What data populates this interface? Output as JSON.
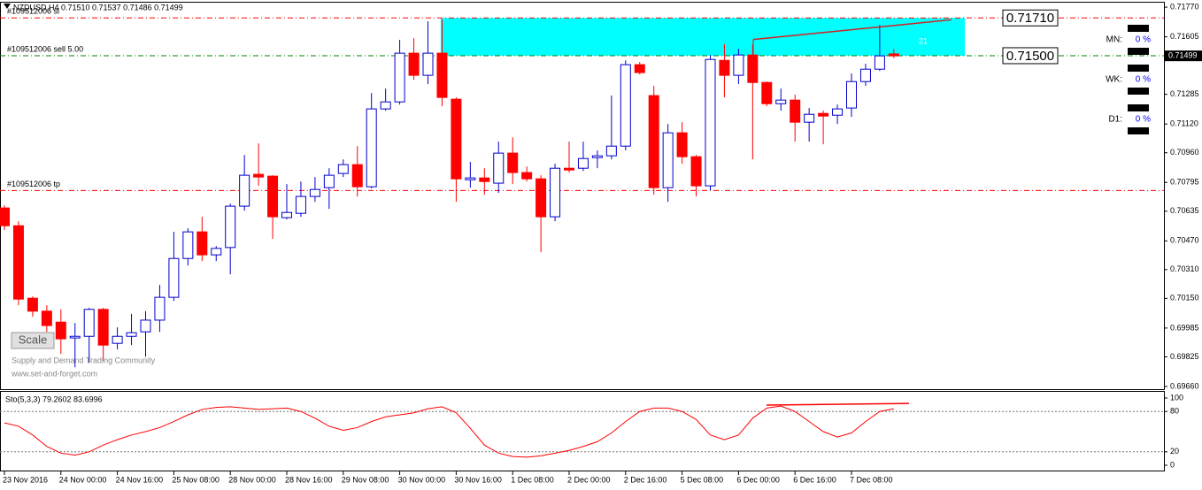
{
  "chart_data": [
    {
      "type": "candlestick",
      "header": "NZDUSD,H4  0.71510 0.71537 0.71486 0.71499",
      "categories": [
        "23 Nov 2016",
        null,
        null,
        null,
        "24 Nov 00:00",
        null,
        null,
        null,
        "24 Nov 16:00",
        null,
        null,
        null,
        "25 Nov 08:00",
        null,
        null,
        null,
        "28 Nov 00:00",
        null,
        null,
        null,
        "28 Nov 16:00",
        null,
        null,
        null,
        "29 Nov 08:00",
        null,
        null,
        null,
        "30 Nov 00:00",
        null,
        null,
        null,
        "30 Nov 16:00",
        null,
        null,
        null,
        "1 Dec 08:00",
        null,
        null,
        null,
        "2 Dec 00:00",
        null,
        null,
        null,
        "2 Dec 16:00",
        null,
        null,
        null,
        "5 Dec 08:00",
        null,
        null,
        null,
        "6 Dec 00:00",
        null,
        null,
        null,
        "6 Dec 16:00",
        null,
        null,
        null,
        "7 Dec 08:00",
        null,
        null,
        null
      ],
      "open": [
        0.70653,
        0.70554,
        0.70151,
        0.70079,
        0.70018,
        0.6993,
        0.69939,
        0.70089,
        0.699,
        0.69939,
        0.69964,
        0.70029,
        0.70156,
        0.70372,
        0.7052,
        0.70392,
        0.70433,
        0.70663,
        0.7084,
        0.7083,
        0.70599,
        0.70623,
        0.70717,
        0.70766,
        0.70845,
        0.70894,
        0.70771,
        0.71204,
        0.71243,
        0.71514,
        0.71391,
        0.71514,
        0.71258,
        0.7081,
        0.7082,
        0.70791,
        0.70958,
        0.7085,
        0.70815,
        0.70604,
        0.70874,
        0.70874,
        0.70933,
        0.70943,
        0.70997,
        0.7145,
        0.71278,
        0.70766,
        0.71071,
        0.70938,
        0.70776,
        0.71474,
        0.71391,
        0.71504,
        0.71351,
        0.71233,
        0.71253,
        0.7113,
        0.71179,
        0.71169,
        0.71209,
        0.71356,
        0.71425,
        0.7151
      ],
      "high": [
        0.70668,
        0.70579,
        0.70161,
        0.70112,
        0.70089,
        0.70013,
        0.70097,
        0.70097,
        0.69989,
        0.70064,
        0.70079,
        0.70225,
        0.7052,
        0.7054,
        0.70604,
        0.70441,
        0.70677,
        0.70948,
        0.71012,
        0.70835,
        0.70786,
        0.708,
        0.70825,
        0.70874,
        0.70923,
        0.70997,
        0.71292,
        0.71317,
        0.71588,
        0.71597,
        0.71691,
        0.71701,
        0.71268,
        0.70909,
        0.70874,
        0.71022,
        0.71046,
        0.70884,
        0.70835,
        0.70899,
        0.71022,
        0.71022,
        0.70973,
        0.71278,
        0.71474,
        0.71465,
        0.71332,
        0.7112,
        0.7113,
        0.70948,
        0.71504,
        0.71563,
        0.71538,
        0.71563,
        0.71356,
        0.71317,
        0.71283,
        0.71209,
        0.71194,
        0.71228,
        0.71401,
        0.71455,
        0.71671,
        0.71537
      ],
      "low": [
        0.7053,
        0.70112,
        0.70048,
        0.69964,
        0.69841,
        0.69767,
        0.69792,
        0.69802,
        0.69866,
        0.6989,
        0.69826,
        0.69964,
        0.70136,
        0.70333,
        0.70358,
        0.70358,
        0.70284,
        0.70638,
        0.70776,
        0.70481,
        0.70589,
        0.70604,
        0.70687,
        0.70648,
        0.70825,
        0.70717,
        0.70761,
        0.71194,
        0.71228,
        0.71366,
        0.71342,
        0.71219,
        0.70687,
        0.70766,
        0.70727,
        0.70737,
        0.70786,
        0.708,
        0.70407,
        0.70579,
        0.7085,
        0.70859,
        0.70874,
        0.70923,
        0.70973,
        0.71396,
        0.70727,
        0.70687,
        0.70899,
        0.70717,
        0.70751,
        0.71268,
        0.71342,
        0.70923,
        0.71219,
        0.71194,
        0.71022,
        0.71022,
        0.71007,
        0.7112,
        0.7116,
        0.71332,
        0.71415,
        0.71486
      ],
      "close": [
        0.70554,
        0.70146,
        0.70079,
        0.69999,
        0.69925,
        0.69939,
        0.70089,
        0.6989,
        0.69939,
        0.69959,
        0.70029,
        0.70156,
        0.70372,
        0.7052,
        0.70392,
        0.70428,
        0.70663,
        0.70835,
        0.70825,
        0.70604,
        0.70628,
        0.70717,
        0.70756,
        0.70835,
        0.70894,
        0.70771,
        0.71204,
        0.71243,
        0.71514,
        0.71391,
        0.71514,
        0.71268,
        0.70815,
        0.7082,
        0.708,
        0.70958,
        0.7085,
        0.70815,
        0.70604,
        0.70874,
        0.70864,
        0.70928,
        0.70943,
        0.70997,
        0.7145,
        0.71406,
        0.70766,
        0.71071,
        0.70938,
        0.70776,
        0.71479,
        0.71391,
        0.71504,
        0.71351,
        0.71233,
        0.71253,
        0.7113,
        0.71174,
        0.71164,
        0.71204,
        0.71356,
        0.71425,
        0.71499,
        0.71499
      ],
      "up_color": "#ffffff",
      "up_line_color": "#0000cd",
      "down_color": "#ff0000",
      "ylim": [
        0.69645,
        0.71795
      ],
      "yticks": [
        {
          "value": 0.7177,
          "label": "0.71770"
        },
        0.71605,
        0.71285,
        {
          "value": 0.7112,
          "label": "0.71120"
        },
        {
          "value": 0.7096,
          "label": "0.70960"
        },
        0.70795,
        0.70635,
        {
          "value": 0.7047,
          "label": "0.70470"
        },
        {
          "value": 0.7031,
          "label": "0.70310"
        },
        {
          "value": 0.7015,
          "label": "0.70150"
        },
        0.69985,
        0.69825,
        {
          "value": 0.6966,
          "label": "0.69660"
        }
      ],
      "current_price": 0.71499,
      "levels": [
        {
          "name": "#109512006 sl",
          "value": 0.7171,
          "label": "0.71710",
          "color": "#ff0000"
        },
        {
          "name": "#109512006 sell 5.00",
          "value": 0.715,
          "label": "0.71500",
          "color": "#008000"
        },
        {
          "name": "#109512006 tp",
          "value": 0.7075,
          "color": "#ff0000"
        }
      ],
      "zone_color": "#00ffff",
      "trendline": {
        "color": "#d42020",
        "values": [
          0.7159,
          0.717
        ]
      },
      "annotation": "21",
      "button": "Scale",
      "watermark": [
        "Supply and Demand Trading Community",
        "www.set-and-forget.com"
      ],
      "panel": [
        {
          "label": "MN:",
          "value": "0 %"
        },
        {
          "label": "WK:",
          "value": "0 %"
        },
        {
          "label": "D1:",
          "value": "0 %"
        }
      ]
    },
    {
      "type": "line",
      "title": "Sto(5,3,3) 79.2602 83.6996",
      "series": [
        {
          "color": "#ff0000",
          "values": [
            63,
            58,
            45,
            28,
            18,
            15,
            20,
            30,
            38,
            45,
            50,
            56,
            65,
            75,
            83,
            86,
            87,
            85,
            83,
            84,
            85,
            80,
            70,
            58,
            52,
            56,
            65,
            72,
            75,
            78,
            84,
            87,
            78,
            55,
            30,
            18,
            13,
            12,
            14,
            18,
            22,
            28,
            35,
            48,
            65,
            80,
            85,
            85,
            80,
            68,
            45,
            38,
            45,
            70,
            85,
            88,
            80,
            65,
            50,
            42,
            48,
            65,
            80,
            84
          ]
        }
      ],
      "ylim": [
        -9.2,
        107.9
      ],
      "yticks": [
        0,
        20,
        80,
        100
      ],
      "levels": [
        20,
        80
      ],
      "trendline": {
        "color": "#ff0000",
        "values": [
          89.5,
          92
        ]
      }
    }
  ]
}
